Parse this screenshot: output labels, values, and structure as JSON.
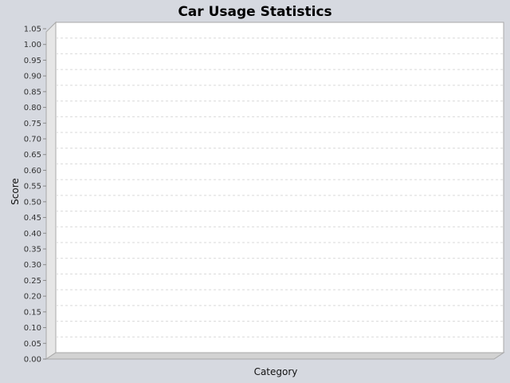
{
  "chart_data": {
    "type": "bar",
    "title": "Car Usage Statistics",
    "xlabel": "Category",
    "ylabel": "Score",
    "categories": [],
    "series": [],
    "ylim": [
      0,
      1.05
    ],
    "y_ticks": [
      "0.00",
      "0.05",
      "0.10",
      "0.15",
      "0.20",
      "0.25",
      "0.30",
      "0.35",
      "0.40",
      "0.45",
      "0.50",
      "0.55",
      "0.60",
      "0.65",
      "0.70",
      "0.75",
      "0.80",
      "0.85",
      "0.90",
      "0.95",
      "1.00",
      "1.05"
    ],
    "grid": true,
    "legend": "none",
    "style": "3d"
  },
  "colors": {
    "background": "#d6d9e0",
    "plot_background": "#ffffff",
    "wall": "#e6e6e6",
    "floor": "#d2d2d2",
    "gridline": "#d9d9d9",
    "outline": "#a8a8a8"
  }
}
